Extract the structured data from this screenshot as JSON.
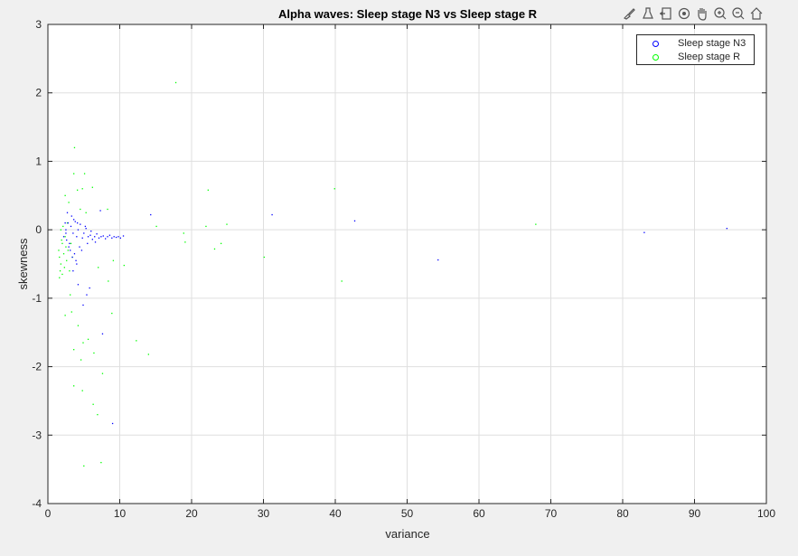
{
  "toolbar": {
    "icons": [
      "brush-icon",
      "data-tips-icon",
      "data-cursor-icon",
      "rotate-icon",
      "pan-hand-icon",
      "zoom-in-icon",
      "zoom-out-icon",
      "home-icon"
    ]
  },
  "chart_data": {
    "type": "scatter",
    "title": "Alpha waves: Sleep stage N3 vs Sleep stage R",
    "xlabel": "variance",
    "ylabel": "skewness",
    "xlim": [
      0,
      100
    ],
    "ylim": [
      -4,
      3
    ],
    "xticks": [
      "0",
      "10",
      "20",
      "30",
      "40",
      "50",
      "60",
      "70",
      "80",
      "90",
      "100"
    ],
    "yticks": [
      "-4",
      "-3",
      "-2",
      "-1",
      "0",
      "1",
      "2",
      "3"
    ],
    "grid": true,
    "legend_position": "top-right",
    "colors": {
      "N3": "#0000ff",
      "R": "#00ff00",
      "grid": "#dfdfdf",
      "axis": "#262626"
    },
    "series": [
      {
        "name": "Sleep stage N3",
        "color": "#0000ff",
        "marker": "o",
        "points": [
          [
            2.2,
            -0.1
          ],
          [
            2.5,
            0.0
          ],
          [
            2.8,
            0.1
          ],
          [
            3.0,
            -0.2
          ],
          [
            3.2,
            0.05
          ],
          [
            3.5,
            -0.05
          ],
          [
            3.8,
            0.12
          ],
          [
            4.0,
            -0.1
          ],
          [
            4.2,
            0.0
          ],
          [
            4.5,
            0.08
          ],
          [
            4.8,
            -0.12
          ],
          [
            5.0,
            -0.05
          ],
          [
            5.3,
            0.02
          ],
          [
            5.6,
            -0.1
          ],
          [
            5.9,
            -0.08
          ],
          [
            6.2,
            -0.14
          ],
          [
            6.5,
            -0.1
          ],
          [
            6.8,
            -0.06
          ],
          [
            7.1,
            -0.12
          ],
          [
            7.4,
            -0.1
          ],
          [
            7.7,
            -0.09
          ],
          [
            8.0,
            -0.13
          ],
          [
            8.3,
            -0.1
          ],
          [
            8.6,
            -0.08
          ],
          [
            8.9,
            -0.12
          ],
          [
            9.2,
            -0.1
          ],
          [
            9.5,
            -0.11
          ],
          [
            9.8,
            -0.1
          ],
          [
            10.1,
            -0.12
          ],
          [
            10.5,
            -0.09
          ],
          [
            3.1,
            -0.3
          ],
          [
            3.4,
            -0.4
          ],
          [
            3.7,
            -0.35
          ],
          [
            2.9,
            -0.25
          ],
          [
            3.3,
            0.2
          ],
          [
            2.7,
            0.25
          ],
          [
            3.6,
            0.15
          ],
          [
            4.1,
            0.1
          ],
          [
            4.4,
            -0.25
          ],
          [
            3.9,
            -0.45
          ],
          [
            2.6,
            -0.15
          ],
          [
            2.4,
            0.1
          ],
          [
            5.5,
            -0.2
          ],
          [
            5.2,
            0.05
          ],
          [
            6.0,
            -0.02
          ],
          [
            4.7,
            -0.3
          ],
          [
            4.0,
            -0.5
          ],
          [
            3.5,
            -0.6
          ],
          [
            5.8,
            -0.85
          ],
          [
            5.4,
            -0.95
          ],
          [
            4.9,
            -1.1
          ],
          [
            7.6,
            -1.52
          ],
          [
            9.0,
            -2.83
          ],
          [
            4.2,
            -0.8
          ],
          [
            2.5,
            -0.05
          ],
          [
            6.6,
            -0.18
          ],
          [
            7.3,
            0.28
          ],
          [
            14.3,
            0.22
          ],
          [
            31.2,
            0.22
          ],
          [
            42.7,
            0.13
          ],
          [
            54.3,
            -0.44
          ],
          [
            83.0,
            -0.04
          ],
          [
            94.5,
            0.02
          ]
        ]
      },
      {
        "name": "Sleep stage R",
        "color": "#00ff00",
        "marker": "o",
        "points": [
          [
            1.5,
            -0.3
          ],
          [
            1.6,
            -0.4
          ],
          [
            1.8,
            -0.5
          ],
          [
            2.0,
            -0.2
          ],
          [
            1.7,
            -0.6
          ],
          [
            2.2,
            -0.35
          ],
          [
            2.4,
            -0.1
          ],
          [
            2.6,
            -0.45
          ],
          [
            1.9,
            -0.15
          ],
          [
            2.1,
            0.05
          ],
          [
            2.3,
            -0.55
          ],
          [
            2.5,
            -0.25
          ],
          [
            2.8,
            -0.3
          ],
          [
            3.0,
            -0.6
          ],
          [
            3.2,
            -0.2
          ],
          [
            1.6,
            -0.7
          ],
          [
            2.0,
            -0.65
          ],
          [
            2.7,
            0.1
          ],
          [
            3.4,
            -0.4
          ],
          [
            1.8,
            0.0
          ],
          [
            3.7,
            1.2
          ],
          [
            4.1,
            0.58
          ],
          [
            4.8,
            0.6
          ],
          [
            5.1,
            0.82
          ],
          [
            6.2,
            0.62
          ],
          [
            3.6,
            0.82
          ],
          [
            2.9,
            0.4
          ],
          [
            2.4,
            0.5
          ],
          [
            4.5,
            0.3
          ],
          [
            5.3,
            0.25
          ],
          [
            3.1,
            -0.95
          ],
          [
            3.3,
            -1.2
          ],
          [
            2.4,
            -1.25
          ],
          [
            4.2,
            -1.4
          ],
          [
            3.6,
            -1.75
          ],
          [
            4.9,
            -1.65
          ],
          [
            4.6,
            -1.9
          ],
          [
            5.6,
            -1.6
          ],
          [
            6.4,
            -1.8
          ],
          [
            8.9,
            -1.22
          ],
          [
            7.6,
            -2.1
          ],
          [
            3.6,
            -2.28
          ],
          [
            4.8,
            -2.35
          ],
          [
            6.3,
            -2.55
          ],
          [
            6.9,
            -2.7
          ],
          [
            5.0,
            -3.45
          ],
          [
            7.4,
            -3.4
          ],
          [
            12.3,
            -1.62
          ],
          [
            14.0,
            -1.82
          ],
          [
            8.4,
            -0.75
          ],
          [
            7.0,
            -0.55
          ],
          [
            9.1,
            -0.45
          ],
          [
            10.6,
            -0.52
          ],
          [
            8.3,
            0.3
          ],
          [
            15.1,
            0.05
          ],
          [
            17.8,
            2.15
          ],
          [
            18.9,
            -0.05
          ],
          [
            19.1,
            -0.18
          ],
          [
            22.0,
            0.05
          ],
          [
            22.3,
            0.58
          ],
          [
            23.2,
            -0.28
          ],
          [
            24.1,
            -0.2
          ],
          [
            24.9,
            0.08
          ],
          [
            30.1,
            -0.4
          ],
          [
            39.9,
            0.6
          ],
          [
            40.9,
            -0.75
          ],
          [
            67.9,
            0.08
          ]
        ]
      }
    ]
  }
}
